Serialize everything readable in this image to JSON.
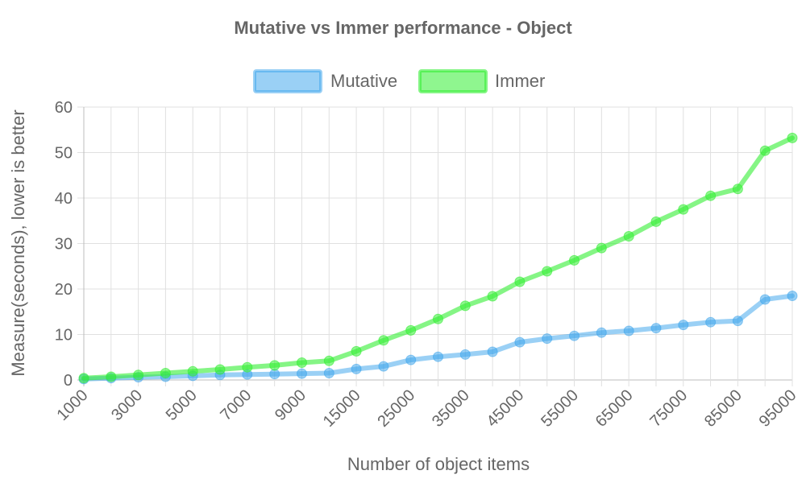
{
  "chart_data": {
    "type": "line",
    "title": "Mutative vs Immer performance - Object",
    "xlabel": "Number of object items",
    "ylabel": "Measure(seconds), lower is better",
    "ylim": [
      0,
      60
    ],
    "yticks": [
      0,
      10,
      20,
      30,
      40,
      50,
      60
    ],
    "grid": true,
    "legend_position": "top",
    "x": [
      "1000",
      "2000",
      "3000",
      "4000",
      "5000",
      "6000",
      "7000",
      "8000",
      "9000",
      "10000",
      "15000",
      "20000",
      "25000",
      "30000",
      "35000",
      "40000",
      "45000",
      "50000",
      "55000",
      "60000",
      "65000",
      "70000",
      "75000",
      "80000",
      "85000",
      "90000",
      "95000"
    ],
    "x_tick_labels": [
      "1000",
      "3000",
      "5000",
      "7000",
      "9000",
      "15000",
      "25000",
      "35000",
      "45000",
      "55000",
      "65000",
      "75000",
      "85000",
      "95000"
    ],
    "series": [
      {
        "name": "Mutative",
        "color": "#36a2eb",
        "values": [
          0.2,
          0.4,
          0.6,
          0.7,
          0.9,
          1.1,
          1.2,
          1.3,
          1.4,
          1.5,
          2.4,
          3.0,
          4.4,
          5.1,
          5.6,
          6.2,
          8.3,
          9.1,
          9.7,
          10.4,
          10.8,
          11.4,
          12.1,
          12.7,
          13.0,
          17.7,
          18.5
        ]
      },
      {
        "name": "Immer",
        "color": "#33ee33",
        "values": [
          0.4,
          0.7,
          1.1,
          1.5,
          1.9,
          2.3,
          2.8,
          3.2,
          3.8,
          4.2,
          6.3,
          8.7,
          10.9,
          13.4,
          16.3,
          18.4,
          21.6,
          23.9,
          26.3,
          29.0,
          31.6,
          34.8,
          37.5,
          40.5,
          42.0,
          50.4,
          53.2
        ]
      }
    ]
  }
}
